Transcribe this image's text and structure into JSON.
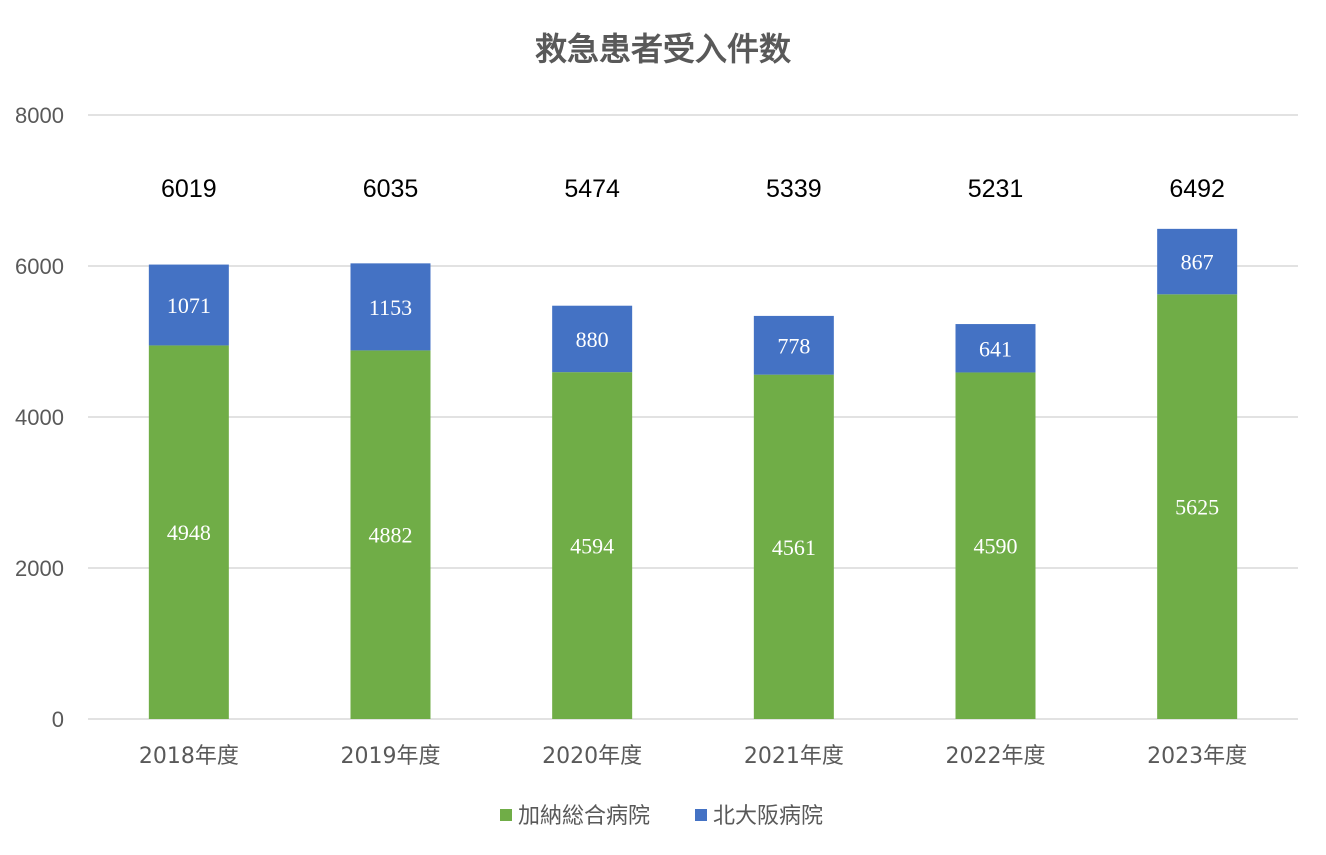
{
  "chart_data": {
    "type": "bar",
    "stacked": true,
    "title": "救急患者受入件数",
    "categories": [
      "2018年度",
      "2019年度",
      "2020年度",
      "2021年度",
      "2022年度",
      "2023年度"
    ],
    "series": [
      {
        "name": "加納総合病院",
        "color": "#70ad47",
        "values": [
          4948,
          4882,
          4594,
          4561,
          4590,
          5625
        ]
      },
      {
        "name": "北大阪病院",
        "color": "#4472c4",
        "values": [
          1071,
          1153,
          880,
          778,
          641,
          867
        ]
      }
    ],
    "totals": [
      6019,
      6035,
      5474,
      5339,
      5231,
      6492
    ],
    "ylim": [
      0,
      8000
    ],
    "yticks": [
      0,
      2000,
      4000,
      6000,
      8000
    ],
    "grid": true,
    "legend": "bottom"
  }
}
